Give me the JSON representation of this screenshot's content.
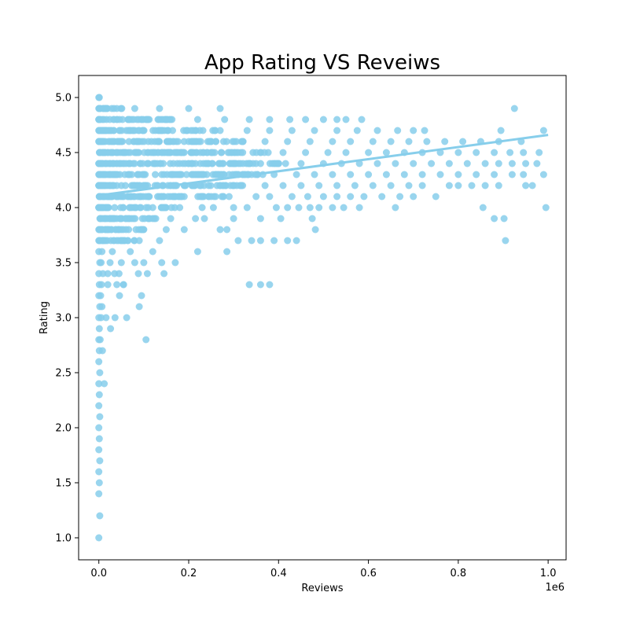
{
  "chart_data": {
    "type": "scatter",
    "title": "App Rating VS Reveiws",
    "xlabel": "Reviews",
    "ylabel": "Rating",
    "x_offset_label": "1e6",
    "xlim": [
      -45000,
      1040000
    ],
    "ylim": [
      0.8,
      5.2
    ],
    "x_ticks": [
      0,
      200000,
      400000,
      600000,
      800000,
      1000000
    ],
    "x_tick_labels": [
      "0.0",
      "0.2",
      "0.4",
      "0.6",
      "0.8",
      "1.0"
    ],
    "y_ticks": [
      1.0,
      1.5,
      2.0,
      2.5,
      3.0,
      3.5,
      4.0,
      4.5,
      5.0
    ],
    "y_tick_labels": [
      "1.0",
      "1.5",
      "2.0",
      "2.5",
      "3.0",
      "3.5",
      "4.0",
      "4.5",
      "5.0"
    ],
    "grid": false,
    "color": "#87CEEB",
    "trend_line": {
      "x": [
        0,
        1000000
      ],
      "y": [
        4.11,
        4.66
      ]
    },
    "points_low_reviews": [
      [
        0,
        1.0
      ],
      [
        2000,
        1.2
      ],
      [
        0,
        1.4
      ],
      [
        1000,
        1.5
      ],
      [
        0,
        1.6
      ],
      [
        2000,
        1.7
      ],
      [
        0,
        1.8
      ],
      [
        1000,
        1.9
      ],
      [
        0,
        2.0
      ],
      [
        2000,
        2.1
      ],
      [
        0,
        2.2
      ],
      [
        1000,
        2.3
      ],
      [
        0,
        2.4
      ],
      [
        12000,
        2.4
      ],
      [
        2000,
        2.5
      ],
      [
        0,
        2.6
      ],
      [
        1000,
        2.7
      ],
      [
        8000,
        2.7
      ],
      [
        0,
        2.8
      ],
      [
        3000,
        2.8
      ],
      [
        1000,
        2.9
      ],
      [
        0,
        3.0
      ],
      [
        5000,
        3.0
      ],
      [
        2000,
        3.1
      ],
      [
        7000,
        3.1
      ],
      [
        0,
        3.2
      ],
      [
        4000,
        3.2
      ],
      [
        1000,
        3.3
      ],
      [
        6000,
        3.3
      ],
      [
        0,
        3.4
      ],
      [
        9000,
        3.4
      ],
      [
        2000,
        3.5
      ],
      [
        5000,
        3.5
      ],
      [
        0,
        3.6
      ],
      [
        7000,
        3.6
      ],
      [
        1000,
        3.7
      ],
      [
        10000,
        3.7
      ],
      [
        0,
        3.8
      ],
      [
        6000,
        3.8
      ],
      [
        3000,
        3.9
      ],
      [
        12000,
        3.9
      ],
      [
        0,
        4.0
      ],
      [
        8000,
        4.0
      ],
      [
        2000,
        4.1
      ],
      [
        11000,
        4.1
      ],
      [
        0,
        4.2
      ],
      [
        9000,
        4.2
      ],
      [
        3000,
        4.3
      ],
      [
        12000,
        4.3
      ],
      [
        0,
        4.4
      ],
      [
        7000,
        4.4
      ],
      [
        2000,
        4.5
      ],
      [
        10000,
        4.5
      ],
      [
        0,
        4.6
      ],
      [
        6000,
        4.6
      ],
      [
        3000,
        4.7
      ],
      [
        11000,
        4.7
      ],
      [
        0,
        4.8
      ],
      [
        8000,
        4.8
      ],
      [
        2000,
        4.9
      ],
      [
        9000,
        4.9
      ],
      [
        0,
        5.0
      ],
      [
        1000,
        5.0
      ]
    ],
    "points_spread": [
      [
        16000,
        3.0
      ],
      [
        26000,
        2.9
      ],
      [
        36000,
        3.0
      ],
      [
        46000,
        3.2
      ],
      [
        62000,
        3.0
      ],
      [
        90000,
        3.1
      ],
      [
        95000,
        3.2
      ],
      [
        105000,
        2.8
      ],
      [
        20000,
        3.3
      ],
      [
        40000,
        3.3
      ],
      [
        55000,
        3.3
      ],
      [
        20000,
        3.4
      ],
      [
        35000,
        3.4
      ],
      [
        45000,
        3.4
      ],
      [
        88000,
        3.4
      ],
      [
        108000,
        3.4
      ],
      [
        145000,
        3.4
      ],
      [
        25000,
        3.5
      ],
      [
        50000,
        3.5
      ],
      [
        80000,
        3.5
      ],
      [
        100000,
        3.5
      ],
      [
        140000,
        3.5
      ],
      [
        170000,
        3.5
      ],
      [
        30000,
        3.6
      ],
      [
        70000,
        3.6
      ],
      [
        120000,
        3.6
      ],
      [
        220000,
        3.6
      ],
      [
        285000,
        3.6
      ],
      [
        40000,
        3.7
      ],
      [
        90000,
        3.7
      ],
      [
        135000,
        3.7
      ],
      [
        310000,
        3.7
      ],
      [
        340000,
        3.7
      ],
      [
        360000,
        3.7
      ],
      [
        390000,
        3.7
      ],
      [
        420000,
        3.7
      ],
      [
        440000,
        3.7
      ],
      [
        905000,
        3.7
      ],
      [
        50000,
        3.8
      ],
      [
        100000,
        3.8
      ],
      [
        150000,
        3.8
      ],
      [
        190000,
        3.8
      ],
      [
        270000,
        3.8
      ],
      [
        285000,
        3.8
      ],
      [
        482000,
        3.8
      ],
      [
        55000,
        3.3
      ],
      [
        335000,
        3.3
      ],
      [
        360000,
        3.3
      ],
      [
        380000,
        3.3
      ],
      [
        60000,
        3.9
      ],
      [
        110000,
        3.9
      ],
      [
        160000,
        3.9
      ],
      [
        215000,
        3.9
      ],
      [
        235000,
        3.9
      ],
      [
        300000,
        3.9
      ],
      [
        360000,
        3.9
      ],
      [
        405000,
        3.9
      ],
      [
        475000,
        3.9
      ],
      [
        880000,
        3.9
      ],
      [
        902000,
        3.9
      ],
      [
        70000,
        4.0
      ],
      [
        120000,
        4.0
      ],
      [
        180000,
        4.0
      ],
      [
        230000,
        4.0
      ],
      [
        255000,
        4.0
      ],
      [
        300000,
        4.0
      ],
      [
        330000,
        4.0
      ],
      [
        395000,
        4.0
      ],
      [
        420000,
        4.0
      ],
      [
        445000,
        4.0
      ],
      [
        470000,
        4.0
      ],
      [
        490000,
        4.0
      ],
      [
        520000,
        4.0
      ],
      [
        545000,
        4.0
      ],
      [
        580000,
        4.0
      ],
      [
        660000,
        4.0
      ],
      [
        855000,
        4.0
      ],
      [
        995000,
        4.0
      ],
      [
        80000,
        4.1
      ],
      [
        140000,
        4.1
      ],
      [
        190000,
        4.1
      ],
      [
        250000,
        4.1
      ],
      [
        290000,
        4.1
      ],
      [
        350000,
        4.1
      ],
      [
        380000,
        4.1
      ],
      [
        430000,
        4.1
      ],
      [
        465000,
        4.1
      ],
      [
        500000,
        4.1
      ],
      [
        530000,
        4.1
      ],
      [
        560000,
        4.1
      ],
      [
        590000,
        4.1
      ],
      [
        630000,
        4.1
      ],
      [
        670000,
        4.1
      ],
      [
        700000,
        4.1
      ],
      [
        750000,
        4.1
      ],
      [
        90000,
        4.2
      ],
      [
        160000,
        4.2
      ],
      [
        210000,
        4.2
      ],
      [
        270000,
        4.2
      ],
      [
        320000,
        4.2
      ],
      [
        370000,
        4.2
      ],
      [
        410000,
        4.2
      ],
      [
        450000,
        4.2
      ],
      [
        490000,
        4.2
      ],
      [
        530000,
        4.2
      ],
      [
        570000,
        4.2
      ],
      [
        610000,
        4.2
      ],
      [
        650000,
        4.2
      ],
      [
        690000,
        4.2
      ],
      [
        720000,
        4.2
      ],
      [
        780000,
        4.2
      ],
      [
        800000,
        4.2
      ],
      [
        830000,
        4.2
      ],
      [
        860000,
        4.2
      ],
      [
        890000,
        4.2
      ],
      [
        950000,
        4.2
      ],
      [
        965000,
        4.2
      ],
      [
        100000,
        4.3
      ],
      [
        170000,
        4.3
      ],
      [
        230000,
        4.3
      ],
      [
        290000,
        4.3
      ],
      [
        340000,
        4.3
      ],
      [
        390000,
        4.3
      ],
      [
        440000,
        4.3
      ],
      [
        480000,
        4.3
      ],
      [
        520000,
        4.3
      ],
      [
        560000,
        4.3
      ],
      [
        600000,
        4.3
      ],
      [
        640000,
        4.3
      ],
      [
        680000,
        4.3
      ],
      [
        720000,
        4.3
      ],
      [
        760000,
        4.3
      ],
      [
        800000,
        4.3
      ],
      [
        840000,
        4.3
      ],
      [
        880000,
        4.3
      ],
      [
        920000,
        4.3
      ],
      [
        945000,
        4.3
      ],
      [
        990000,
        4.3
      ],
      [
        110000,
        4.4
      ],
      [
        180000,
        4.4
      ],
      [
        240000,
        4.4
      ],
      [
        300000,
        4.4
      ],
      [
        350000,
        4.4
      ],
      [
        400000,
        4.4
      ],
      [
        450000,
        4.4
      ],
      [
        500000,
        4.4
      ],
      [
        540000,
        4.4
      ],
      [
        580000,
        4.4
      ],
      [
        620000,
        4.4
      ],
      [
        660000,
        4.4
      ],
      [
        700000,
        4.4
      ],
      [
        740000,
        4.4
      ],
      [
        780000,
        4.4
      ],
      [
        820000,
        4.4
      ],
      [
        860000,
        4.4
      ],
      [
        890000,
        4.4
      ],
      [
        920000,
        4.4
      ],
      [
        950000,
        4.4
      ],
      [
        975000,
        4.4
      ],
      [
        120000,
        4.5
      ],
      [
        190000,
        4.5
      ],
      [
        250000,
        4.5
      ],
      [
        310000,
        4.5
      ],
      [
        360000,
        4.5
      ],
      [
        410000,
        4.5
      ],
      [
        460000,
        4.5
      ],
      [
        510000,
        4.5
      ],
      [
        550000,
        4.5
      ],
      [
        600000,
        4.5
      ],
      [
        640000,
        4.5
      ],
      [
        680000,
        4.5
      ],
      [
        720000,
        4.5
      ],
      [
        760000,
        4.5
      ],
      [
        800000,
        4.5
      ],
      [
        840000,
        4.5
      ],
      [
        880000,
        4.5
      ],
      [
        915000,
        4.5
      ],
      [
        945000,
        4.5
      ],
      [
        980000,
        4.5
      ],
      [
        130000,
        4.6
      ],
      [
        200000,
        4.6
      ],
      [
        260000,
        4.6
      ],
      [
        320000,
        4.6
      ],
      [
        370000,
        4.6
      ],
      [
        420000,
        4.6
      ],
      [
        470000,
        4.6
      ],
      [
        520000,
        4.6
      ],
      [
        560000,
        4.6
      ],
      [
        610000,
        4.6
      ],
      [
        650000,
        4.6
      ],
      [
        690000,
        4.6
      ],
      [
        730000,
        4.6
      ],
      [
        770000,
        4.6
      ],
      [
        810000,
        4.6
      ],
      [
        850000,
        4.6
      ],
      [
        890000,
        4.6
      ],
      [
        940000,
        4.6
      ],
      [
        140000,
        4.7
      ],
      [
        210000,
        4.7
      ],
      [
        270000,
        4.7
      ],
      [
        330000,
        4.7
      ],
      [
        380000,
        4.7
      ],
      [
        430000,
        4.7
      ],
      [
        480000,
        4.7
      ],
      [
        530000,
        4.7
      ],
      [
        575000,
        4.7
      ],
      [
        620000,
        4.7
      ],
      [
        665000,
        4.7
      ],
      [
        700000,
        4.7
      ],
      [
        725000,
        4.7
      ],
      [
        895000,
        4.7
      ],
      [
        990000,
        4.7
      ],
      [
        150000,
        4.8
      ],
      [
        220000,
        4.8
      ],
      [
        280000,
        4.8
      ],
      [
        335000,
        4.8
      ],
      [
        380000,
        4.8
      ],
      [
        425000,
        4.8
      ],
      [
        460000,
        4.8
      ],
      [
        500000,
        4.8
      ],
      [
        530000,
        4.8
      ],
      [
        550000,
        4.8
      ],
      [
        585000,
        4.8
      ],
      [
        40000,
        4.9
      ],
      [
        80000,
        4.9
      ],
      [
        135000,
        4.9
      ],
      [
        200000,
        4.9
      ],
      [
        270000,
        4.9
      ],
      [
        925000,
        4.9
      ]
    ]
  }
}
